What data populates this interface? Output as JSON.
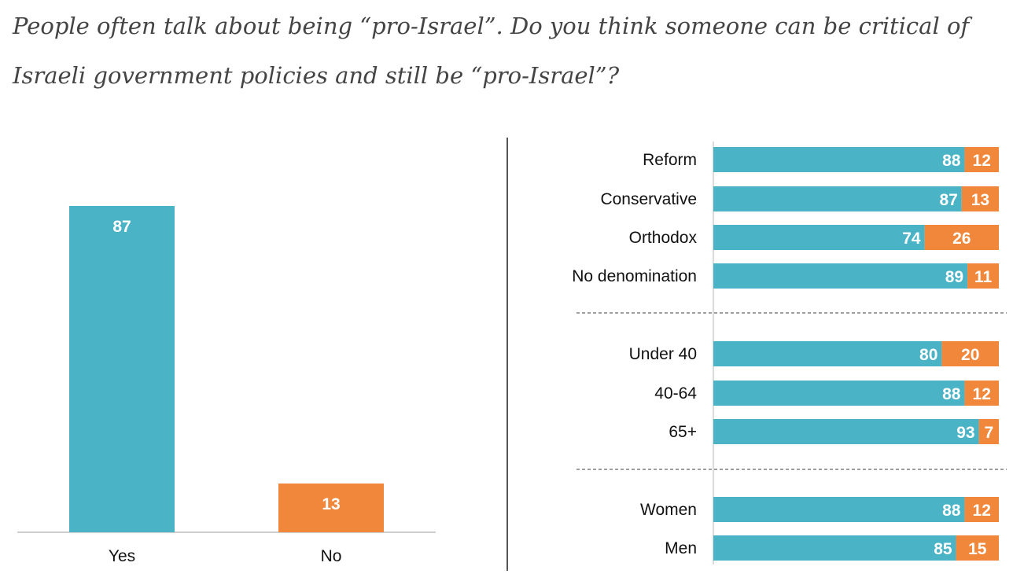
{
  "question": "People often talk about being “pro-Israel”. Do you think someone can be critical of Israeli government policies and still be “pro-Israel”?",
  "colors": {
    "yes": "#4bb3c6",
    "no": "#f0873a",
    "axis": "#cfcfcf",
    "divider": "#555555"
  },
  "chart_data": [
    {
      "type": "bar",
      "categories": [
        "Yes",
        "No"
      ],
      "values": [
        87,
        13
      ],
      "ylim": [
        0,
        100
      ],
      "title": "",
      "xlabel": "",
      "ylabel": "",
      "grid": false
    },
    {
      "type": "bar",
      "orientation": "horizontal",
      "stacked": true,
      "categories": [
        "Reform",
        "Conservative",
        "Orthodox",
        "No denomination",
        "Under 40",
        "40-64",
        "65+",
        "Women",
        "Men"
      ],
      "groups": [
        [
          "Reform",
          "Conservative",
          "Orthodox",
          "No denomination"
        ],
        [
          "Under 40",
          "40-64",
          "65+"
        ],
        [
          "Women",
          "Men"
        ]
      ],
      "series": [
        {
          "values": [
            88,
            87,
            74,
            89,
            80,
            88,
            93,
            88,
            85
          ]
        },
        {
          "values": [
            12,
            13,
            26,
            11,
            20,
            12,
            7,
            12,
            15
          ]
        }
      ],
      "xlim": [
        0,
        100
      ],
      "grid": false
    }
  ]
}
